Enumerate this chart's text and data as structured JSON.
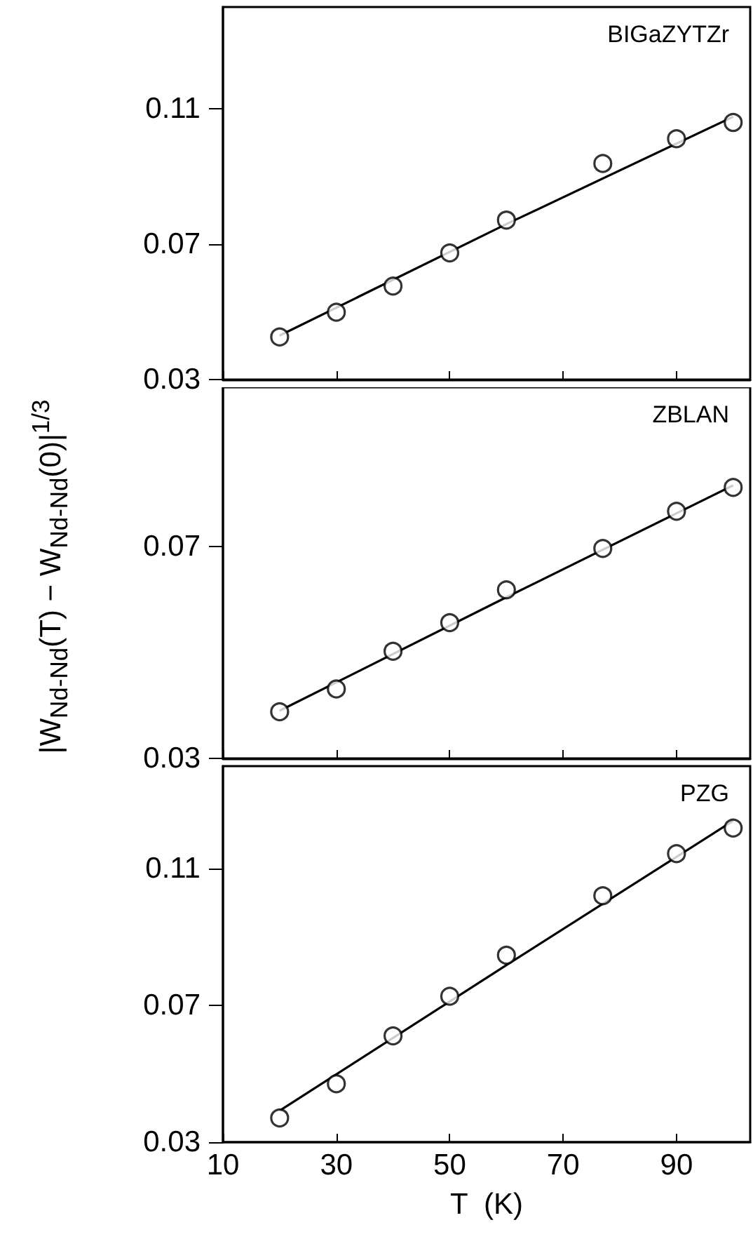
{
  "chart_data": [
    {
      "type": "scatter",
      "title": "BIGaZYTZr",
      "marker": "circle",
      "tick_labels": "y",
      "x": [
        20,
        30,
        40,
        50,
        60,
        77,
        90,
        100
      ],
      "xlim": [
        10,
        103
      ],
      "xticks": [
        10,
        30,
        50,
        70,
        90
      ],
      "ylim": [
        0.03,
        0.14
      ],
      "yticks": [
        0.03,
        0.07,
        0.11
      ],
      "series": [
        {
          "color": "#000000",
          "values": [
            0.0426,
            0.0499,
            0.0576,
            0.0674,
            0.0771,
            0.0938,
            0.1011,
            0.1059
          ]
        },
        {
          "type": "line",
          "marker": "none",
          "color": "#000000",
          "x": [
            20,
            60,
            100
          ],
          "values": [
            0.043,
            0.0759,
            0.1076
          ]
        }
      ]
    },
    {
      "type": "scatter",
      "title": "ZBLAN",
      "ylabel": "|W$_{Nd-Nd}$(T) − W$_{Nd-Nd}$(0)|$^{1/3}$",
      "marker": "circle",
      "tick_labels": "y",
      "x": [
        20,
        30,
        40,
        50,
        60,
        77,
        90,
        100
      ],
      "xlim": [
        10,
        103
      ],
      "xticks": [
        10,
        30,
        50,
        70,
        90
      ],
      "ylim": [
        0.03,
        0.1
      ],
      "yticks": [
        0.03,
        0.07
      ],
      "series": [
        {
          "color": "#000000",
          "values": [
            0.0388,
            0.0431,
            0.0502,
            0.0556,
            0.0618,
            0.0696,
            0.0766,
            0.0811
          ]
        },
        {
          "type": "line",
          "marker": "none",
          "color": "#000000",
          "x": [
            20,
            60,
            100
          ],
          "values": [
            0.039,
            0.0604,
            0.0815
          ]
        }
      ]
    },
    {
      "type": "scatter",
      "title": "PZG",
      "xlabel": "T  (K)",
      "marker": "circle",
      "x": [
        20,
        30,
        40,
        50,
        60,
        77,
        90,
        100
      ],
      "xlim": [
        10,
        103
      ],
      "xticks": [
        10,
        30,
        50,
        70,
        90
      ],
      "ylim": [
        0.03,
        0.14
      ],
      "yticks": [
        0.03,
        0.07,
        0.11
      ],
      "series": [
        {
          "color": "#000000",
          "values": [
            0.0371,
            0.0471,
            0.0611,
            0.0727,
            0.0847,
            0.1021,
            0.1144,
            0.1219
          ]
        },
        {
          "type": "line",
          "marker": "none",
          "color": "#000000",
          "x": [
            20,
            60,
            100
          ],
          "values": [
            0.0392,
            0.0818,
            0.124
          ]
        }
      ]
    }
  ]
}
